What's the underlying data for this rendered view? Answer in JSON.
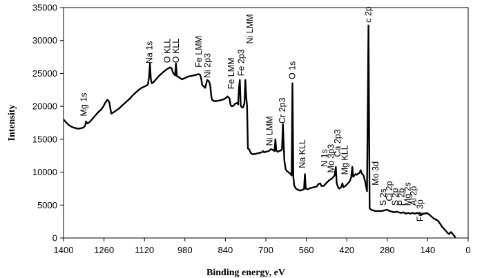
{
  "chart_data": {
    "type": "line",
    "xlabel": "Binding energy, eV",
    "ylabel": "Intensity",
    "xlim": [
      1400,
      0
    ],
    "ylim": [
      0,
      35000
    ],
    "x_ticks": [
      1400,
      1260,
      1120,
      980,
      840,
      700,
      560,
      420,
      280,
      140,
      0
    ],
    "y_ticks": [
      0,
      5000,
      10000,
      15000,
      20000,
      25000,
      30000,
      35000
    ],
    "grid": false,
    "series": [
      {
        "color": "#000000",
        "points": [
          [
            1400,
            18000
          ],
          [
            1390,
            17500
          ],
          [
            1380,
            17100
          ],
          [
            1370,
            16850
          ],
          [
            1360,
            16700
          ],
          [
            1350,
            16600
          ],
          [
            1340,
            16650
          ],
          [
            1330,
            16800
          ],
          [
            1325,
            17100
          ],
          [
            1322,
            17700
          ],
          [
            1318,
            17400
          ],
          [
            1310,
            17600
          ],
          [
            1300,
            18100
          ],
          [
            1290,
            18600
          ],
          [
            1280,
            19100
          ],
          [
            1270,
            19500
          ],
          [
            1262,
            20000
          ],
          [
            1255,
            20600
          ],
          [
            1248,
            21000
          ],
          [
            1242,
            20700
          ],
          [
            1238,
            19700
          ],
          [
            1235,
            18900
          ],
          [
            1230,
            19000
          ],
          [
            1220,
            19300
          ],
          [
            1210,
            19600
          ],
          [
            1200,
            20000
          ],
          [
            1190,
            20400
          ],
          [
            1180,
            20800
          ],
          [
            1170,
            21200
          ],
          [
            1160,
            21700
          ],
          [
            1150,
            22100
          ],
          [
            1140,
            22500
          ],
          [
            1130,
            22800
          ],
          [
            1120,
            23000
          ],
          [
            1112,
            23200
          ],
          [
            1108,
            23300
          ],
          [
            1104,
            24500
          ],
          [
            1101,
            26500
          ],
          [
            1098,
            24200
          ],
          [
            1095,
            23500
          ],
          [
            1090,
            23600
          ],
          [
            1080,
            24100
          ],
          [
            1070,
            24600
          ],
          [
            1060,
            25000
          ],
          [
            1050,
            25400
          ],
          [
            1040,
            25700
          ],
          [
            1032,
            25900
          ],
          [
            1026,
            25800
          ],
          [
            1022,
            25200
          ],
          [
            1018,
            24900
          ],
          [
            1014,
            24700
          ],
          [
            1011,
            26500
          ],
          [
            1008,
            24600
          ],
          [
            1000,
            24400
          ],
          [
            990,
            24100
          ],
          [
            980,
            24300
          ],
          [
            970,
            24500
          ],
          [
            960,
            24600
          ],
          [
            950,
            24700
          ],
          [
            940,
            24800
          ],
          [
            933,
            24900
          ],
          [
            928,
            24800
          ],
          [
            924,
            24300
          ],
          [
            920,
            23200
          ],
          [
            914,
            23000
          ],
          [
            910,
            22800
          ],
          [
            906,
            23500
          ],
          [
            903,
            24000
          ],
          [
            899,
            23900
          ],
          [
            895,
            23600
          ],
          [
            892,
            23000
          ],
          [
            889,
            21600
          ],
          [
            886,
            21000
          ],
          [
            880,
            20800
          ],
          [
            870,
            20800
          ],
          [
            860,
            20900
          ],
          [
            850,
            21000
          ],
          [
            840,
            21200
          ],
          [
            832,
            21500
          ],
          [
            826,
            21200
          ],
          [
            822,
            20200
          ],
          [
            818,
            20000
          ],
          [
            812,
            20100
          ],
          [
            806,
            20400
          ],
          [
            800,
            20500
          ],
          [
            796,
            20300
          ],
          [
            793,
            22800
          ],
          [
            790,
            24000
          ],
          [
            787,
            20100
          ],
          [
            782,
            19800
          ],
          [
            778,
            19900
          ],
          [
            774,
            20500
          ],
          [
            771,
            24000
          ],
          [
            768,
            21500
          ],
          [
            765,
            20000
          ],
          [
            762,
            13600
          ],
          [
            758,
            13500
          ],
          [
            752,
            12900
          ],
          [
            745,
            12700
          ],
          [
            735,
            12800
          ],
          [
            725,
            12900
          ],
          [
            715,
            13000
          ],
          [
            709,
            13200
          ],
          [
            706,
            13000
          ],
          [
            700,
            13100
          ],
          [
            690,
            13200
          ],
          [
            682,
            13500
          ],
          [
            676,
            13400
          ],
          [
            670,
            13200
          ],
          [
            667,
            15000
          ],
          [
            664,
            13300
          ],
          [
            660,
            13100
          ],
          [
            654,
            13200
          ],
          [
            648,
            13300
          ],
          [
            644,
            13500
          ],
          [
            641,
            17300
          ],
          [
            639,
            15000
          ],
          [
            636,
            11800
          ],
          [
            632,
            10500
          ],
          [
            628,
            10200
          ],
          [
            622,
            10000
          ],
          [
            616,
            9800
          ],
          [
            611,
            9500
          ],
          [
            608,
            23500
          ],
          [
            605,
            9300
          ],
          [
            602,
            8000
          ],
          [
            596,
            7500
          ],
          [
            588,
            7300
          ],
          [
            582,
            7200
          ],
          [
            574,
            7300
          ],
          [
            568,
            7400
          ],
          [
            565,
            9700
          ],
          [
            562,
            7500
          ],
          [
            555,
            7400
          ],
          [
            545,
            7600
          ],
          [
            535,
            7700
          ],
          [
            525,
            7800
          ],
          [
            518,
            8200
          ],
          [
            512,
            8300
          ],
          [
            508,
            7900
          ],
          [
            500,
            7900
          ],
          [
            492,
            8300
          ],
          [
            480,
            8800
          ],
          [
            470,
            9100
          ],
          [
            462,
            9500
          ],
          [
            458,
            10800
          ],
          [
            455,
            8300
          ],
          [
            450,
            7700
          ],
          [
            446,
            7500
          ],
          [
            440,
            7700
          ],
          [
            435,
            8300
          ],
          [
            432,
            7700
          ],
          [
            425,
            7900
          ],
          [
            418,
            8200
          ],
          [
            410,
            8600
          ],
          [
            405,
            9200
          ],
          [
            401,
            10800
          ],
          [
            398,
            9300
          ],
          [
            394,
            9500
          ],
          [
            390,
            9700
          ],
          [
            386,
            9600
          ],
          [
            380,
            9800
          ],
          [
            376,
            9900
          ],
          [
            372,
            10300
          ],
          [
            368,
            9800
          ],
          [
            362,
            9500
          ],
          [
            356,
            8500
          ],
          [
            350,
            7100
          ],
          [
            345,
            32300
          ],
          [
            341,
            4500
          ],
          [
            336,
            4300
          ],
          [
            330,
            4200
          ],
          [
            320,
            4100
          ],
          [
            310,
            4100
          ],
          [
            300,
            4100
          ],
          [
            290,
            4200
          ],
          [
            280,
            4300
          ],
          [
            272,
            4100
          ],
          [
            264,
            4000
          ],
          [
            256,
            3900
          ],
          [
            248,
            4000
          ],
          [
            240,
            3900
          ],
          [
            232,
            3800
          ],
          [
            224,
            3900
          ],
          [
            216,
            3700
          ],
          [
            208,
            3800
          ],
          [
            200,
            3700
          ],
          [
            192,
            3800
          ],
          [
            184,
            3700
          ],
          [
            176,
            3800
          ],
          [
            168,
            3700
          ],
          [
            160,
            3600
          ],
          [
            152,
            3700
          ],
          [
            144,
            3800
          ],
          [
            136,
            3600
          ],
          [
            128,
            3300
          ],
          [
            120,
            3000
          ],
          [
            112,
            2800
          ],
          [
            104,
            2600
          ],
          [
            96,
            2100
          ],
          [
            90,
            1700
          ],
          [
            84,
            1400
          ],
          [
            78,
            1100
          ],
          [
            72,
            800
          ],
          [
            66,
            600
          ],
          [
            60,
            900
          ],
          [
            55,
            700
          ],
          [
            50,
            400
          ],
          [
            46,
            200
          ],
          [
            43,
            100
          ]
        ]
      }
    ],
    "annotations": [
      {
        "text": "Mg 1s",
        "x": 1330,
        "y": 18500
      },
      {
        "text": "Na 1s",
        "x": 1103,
        "y": 26500
      },
      {
        "text": "O KLL",
        "x": 1040,
        "y": 26600
      },
      {
        "text": "O KLL",
        "x": 1010,
        "y": 26600
      },
      {
        "text": "Fe LMM",
        "x": 932,
        "y": 25900
      },
      {
        "text": "Ni 2p3",
        "x": 902,
        "y": 24300
      },
      {
        "text": "Fe LMM",
        "x": 820,
        "y": 22600
      },
      {
        "text": "Fe 2p3",
        "x": 785,
        "y": 24600
      },
      {
        "text": "Ni LMM",
        "x": 755,
        "y": 29500
      },
      {
        "text": "Ni LMM",
        "x": 687,
        "y": 14000
      },
      {
        "text": "Cr 2p3",
        "x": 643,
        "y": 17400
      },
      {
        "text": "O 1s",
        "x": 608,
        "y": 24100
      },
      {
        "text": "Na KLL",
        "x": 573,
        "y": 10600
      },
      {
        "text": "N 1s",
        "x": 497,
        "y": 10800
      },
      {
        "text": "Mo 3p3",
        "x": 474,
        "y": 9900
      },
      {
        "text": "Ca 2p3",
        "x": 451,
        "y": 12300
      },
      {
        "text": "Mg KLL",
        "x": 426,
        "y": 9600
      },
      {
        "text": "c 2p",
        "x": 345,
        "y": 32700
      },
      {
        "text": "Mo 3d",
        "x": 320,
        "y": 8000
      },
      {
        "text": "S 2s",
        "x": 294,
        "y": 4900
      },
      {
        "text": "Cl 2p",
        "x": 272,
        "y": 5600
      },
      {
        "text": "S 2p",
        "x": 252,
        "y": 4900
      },
      {
        "text": "P 2p",
        "x": 231,
        "y": 4900
      },
      {
        "text": "Mg 2s",
        "x": 209,
        "y": 4900
      },
      {
        "text": "Al 2p",
        "x": 189,
        "y": 4900
      },
      {
        "text": "Fe 3p",
        "x": 166,
        "y": 2500
      }
    ]
  }
}
